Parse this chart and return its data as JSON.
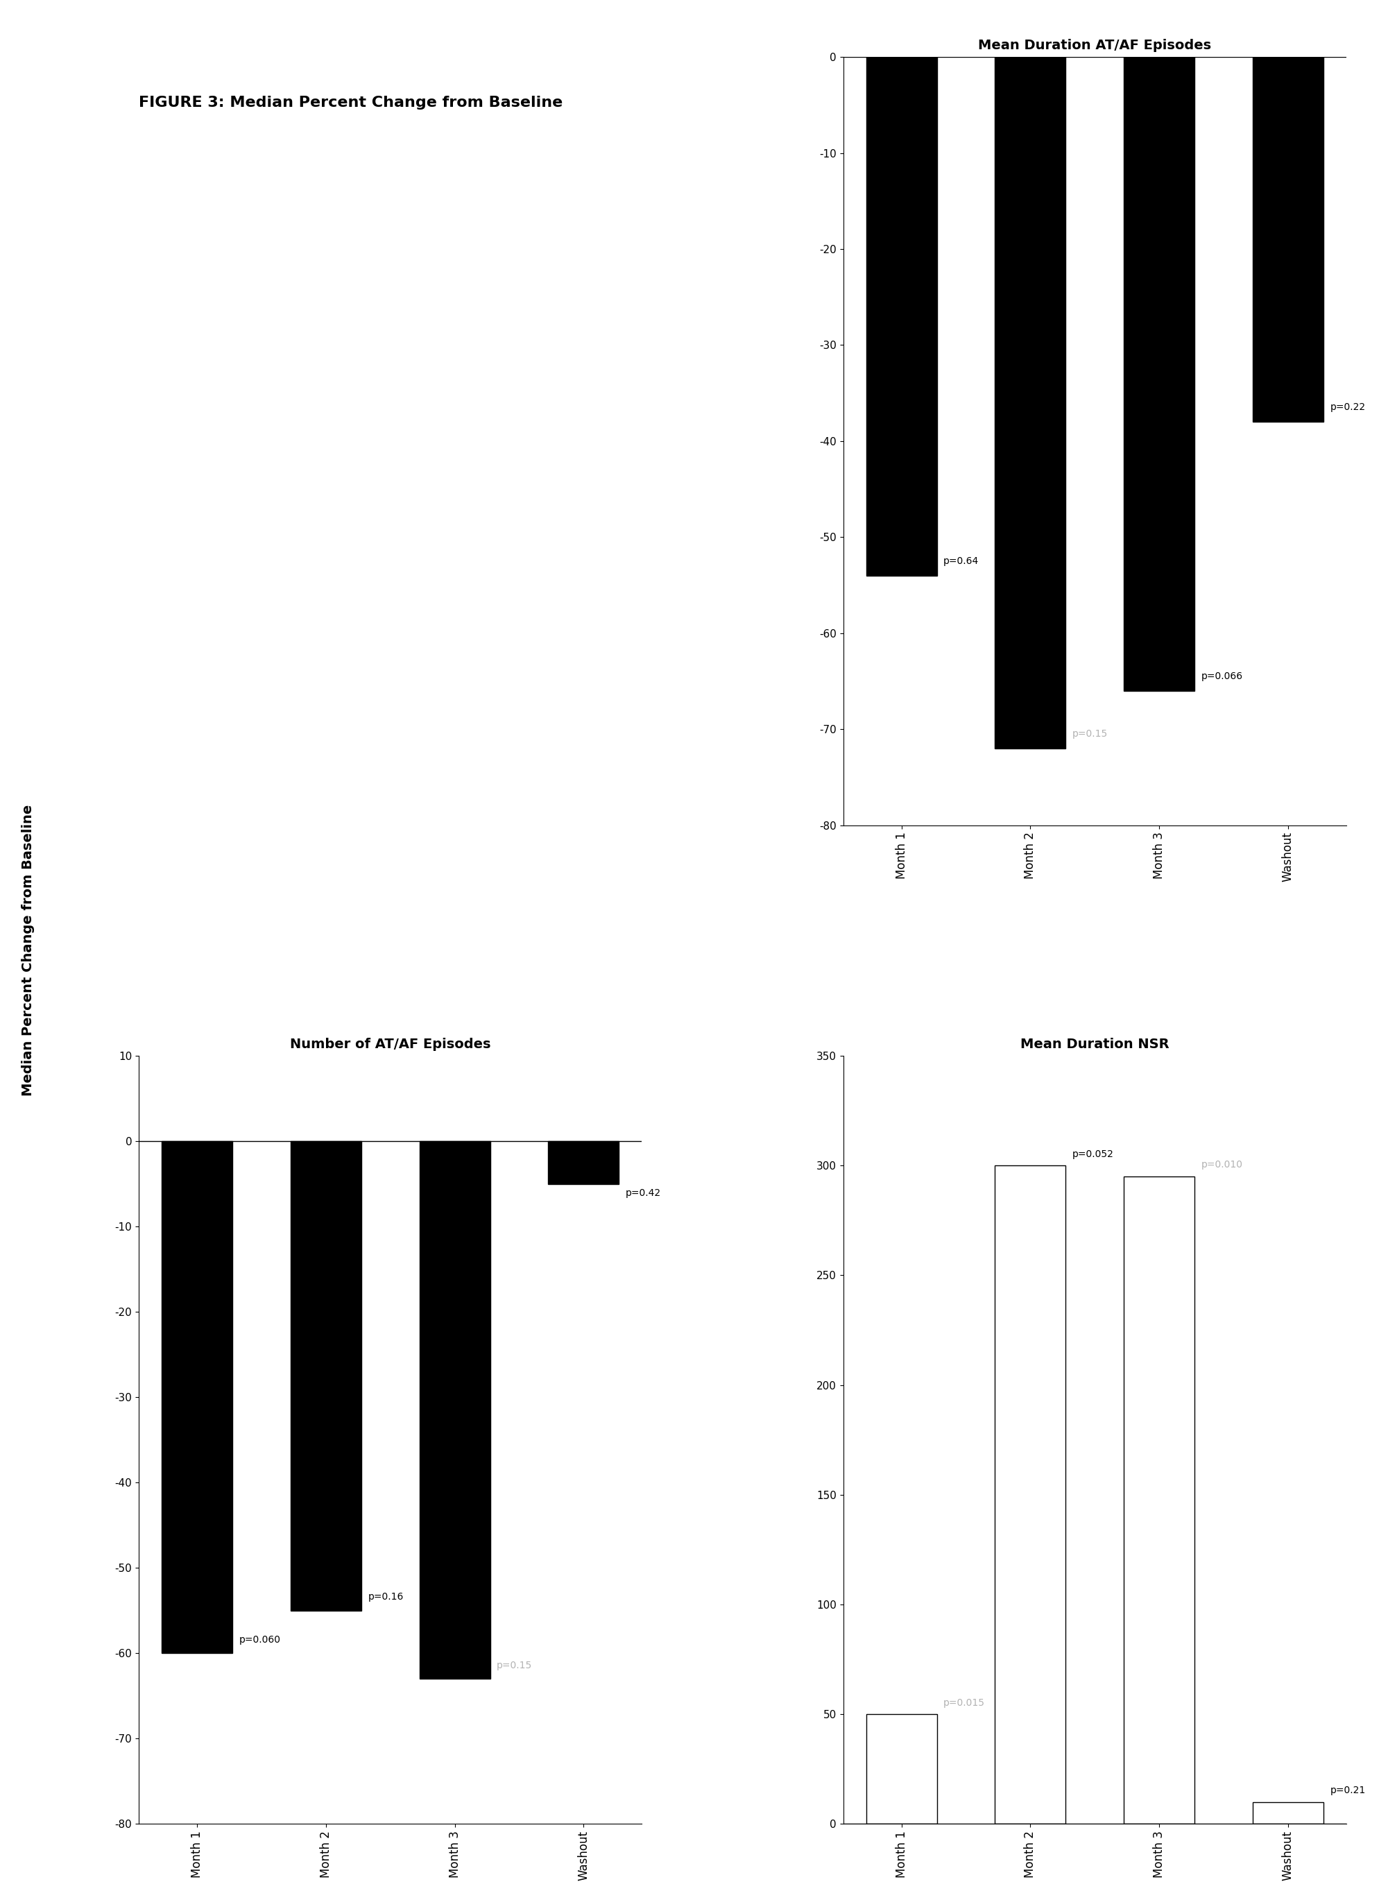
{
  "figure_title": "FIGURE 3: Median Percent Change from Baseline",
  "charts": {
    "num_ataf": {
      "title": "Number of AT/AF Episodes",
      "categories": [
        "Month 1",
        "Month 2",
        "Month 3",
        "Washout"
      ],
      "values": [
        -60,
        -55,
        -63,
        -5
      ],
      "p_values": [
        "p=0.060",
        "p=0.16",
        "p=0.15",
        "p=0.42"
      ],
      "p_faded": [
        false,
        false,
        true,
        false
      ],
      "ylim": [
        -80,
        10
      ],
      "yticks": [
        10,
        0,
        -10,
        -20,
        -30,
        -40,
        -50,
        -60,
        -70,
        -80
      ],
      "bar_color": "#000000",
      "position": "bottom_left"
    },
    "mean_dur_ataf": {
      "title": "Mean Duration AT/AF Episodes",
      "categories": [
        "Month 1",
        "Month 2",
        "Month 3",
        "Washout"
      ],
      "values": [
        -54,
        -72,
        -66,
        -38
      ],
      "p_values": [
        "p=0.64",
        "p=0.15",
        "p=0.066",
        "p=0.22"
      ],
      "p_faded": [
        false,
        true,
        false,
        false
      ],
      "ylim": [
        -80,
        0
      ],
      "yticks": [
        0,
        -10,
        -20,
        -30,
        -40,
        -50,
        -60,
        -70,
        -80
      ],
      "bar_color": "#000000",
      "position": "top_right"
    },
    "mean_dur_nsr": {
      "title": "Mean Duration NSR",
      "categories": [
        "Month 1",
        "Month 2",
        "Month 3",
        "Washout"
      ],
      "values": [
        50,
        300,
        295,
        10
      ],
      "p_values": [
        "p=0.015",
        "p=0.052",
        "p=0.010",
        "p=0.21"
      ],
      "p_faded": [
        true,
        false,
        true,
        false
      ],
      "ylim": [
        0,
        350
      ],
      "yticks": [
        0,
        50,
        100,
        150,
        200,
        250,
        300,
        350
      ],
      "bar_color": "#ffffff",
      "edgecolor": "#000000",
      "position": "bottom_right"
    }
  }
}
